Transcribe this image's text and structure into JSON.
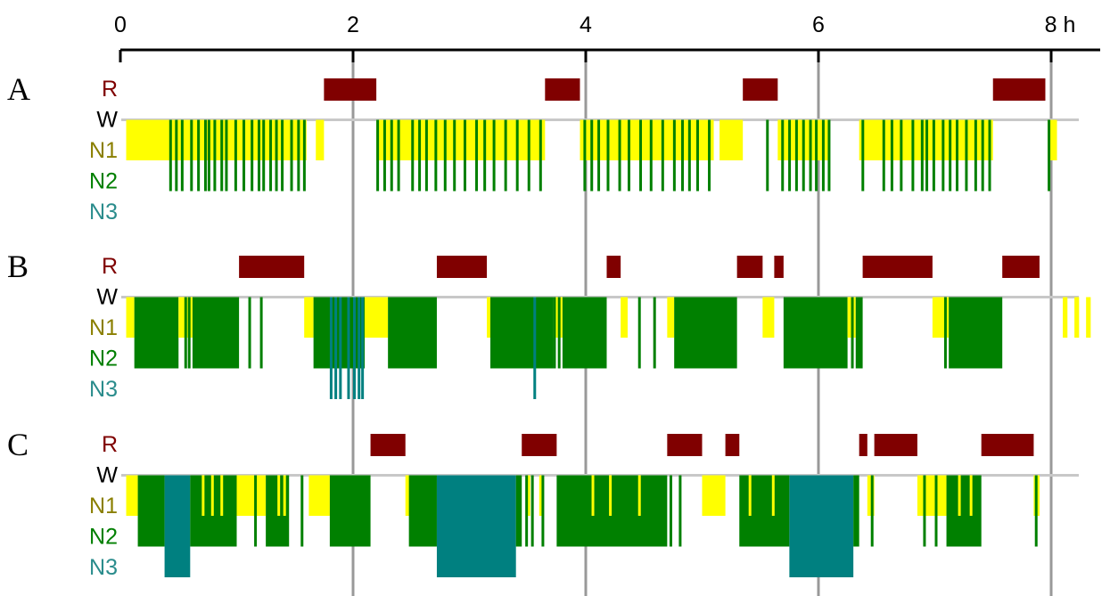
{
  "colors": {
    "R": "#7f0000",
    "W": "#000000",
    "N1": "#8a7f00",
    "N2": "#007f00",
    "N3": "#2a8c8c",
    "fill_N1": "#ffff00",
    "fill_N2": "#008000",
    "fill_N3": "#008080",
    "fill_R": "#800000",
    "gridline": "#999999",
    "baseline": "#c8c8c8"
  },
  "chart_data": {
    "type": "hypnogram",
    "x_axis": {
      "range": [
        0,
        8.0
      ],
      "unit_label": "h",
      "ticks": [
        0,
        2,
        4,
        6,
        8
      ],
      "tick_labels": [
        "0",
        "2",
        "4",
        "6",
        "8 h"
      ]
    },
    "stage_labels": [
      "R",
      "W",
      "N1",
      "N2",
      "N3"
    ],
    "panels": [
      {
        "label": "A",
        "segments": [
          {
            "stage": "N1",
            "start": 0.05,
            "end": 1.6
          },
          {
            "stage": "N1",
            "start": 1.68,
            "end": 1.75
          },
          {
            "stage": "R",
            "start": 1.75,
            "end": 2.2
          },
          {
            "stage": "N1",
            "start": 2.2,
            "end": 3.65
          },
          {
            "stage": "R",
            "start": 3.65,
            "end": 3.95
          },
          {
            "stage": "N1",
            "start": 3.95,
            "end": 5.1
          },
          {
            "stage": "N1",
            "start": 5.15,
            "end": 5.35
          },
          {
            "stage": "R",
            "start": 5.35,
            "end": 5.65
          },
          {
            "stage": "N1",
            "start": 5.65,
            "end": 6.1
          },
          {
            "stage": "N1",
            "start": 6.35,
            "end": 7.5
          },
          {
            "stage": "R",
            "start": 7.5,
            "end": 7.95
          },
          {
            "stage": "N1",
            "start": 7.97,
            "end": 8.05
          }
        ],
        "spikes": [
          {
            "stage": "N2",
            "times": [
              0.42,
              0.47,
              0.52,
              0.6,
              0.66,
              0.72,
              0.75,
              0.8,
              0.86,
              0.9,
              0.98,
              1.05,
              1.12,
              1.18,
              1.22,
              1.28,
              1.33,
              1.38,
              1.46,
              1.52,
              1.57,
              2.2,
              2.26,
              2.32,
              2.38,
              2.5,
              2.56,
              2.62,
              2.7,
              2.78,
              2.86,
              2.95,
              3.05,
              3.12,
              3.2,
              3.3,
              3.4,
              3.5,
              3.6,
              3.98,
              4.04,
              4.1,
              4.18,
              4.28,
              4.36,
              4.46,
              4.55,
              4.65,
              4.75,
              4.82,
              4.88,
              4.95,
              5.05,
              5.55,
              5.68,
              5.74,
              5.8,
              5.86,
              5.92,
              5.97,
              6.03,
              6.08,
              6.37,
              6.55,
              6.62,
              6.7,
              6.8,
              6.88,
              6.92,
              6.98,
              7.06,
              7.12,
              7.18,
              7.26,
              7.34,
              7.4,
              7.46,
              7.97
            ]
          }
        ]
      },
      {
        "label": "B",
        "segments": [
          {
            "stage": "N1",
            "start": 0.05,
            "end": 0.12
          },
          {
            "stage": "N2",
            "start": 0.12,
            "end": 0.5
          },
          {
            "stage": "N1",
            "start": 0.5,
            "end": 0.62
          },
          {
            "stage": "N2",
            "start": 0.62,
            "end": 1.02
          },
          {
            "stage": "R",
            "start": 1.02,
            "end": 1.58
          },
          {
            "stage": "N1",
            "start": 1.58,
            "end": 1.66
          },
          {
            "stage": "N2",
            "start": 1.66,
            "end": 2.1
          },
          {
            "stage": "N1",
            "start": 2.1,
            "end": 2.3
          },
          {
            "stage": "N2",
            "start": 2.3,
            "end": 2.72
          },
          {
            "stage": "R",
            "start": 2.72,
            "end": 3.15
          },
          {
            "stage": "N1",
            "start": 3.15,
            "end": 3.18
          },
          {
            "stage": "N2",
            "start": 3.18,
            "end": 3.72
          },
          {
            "stage": "N1",
            "start": 3.72,
            "end": 3.8
          },
          {
            "stage": "N2",
            "start": 3.8,
            "end": 4.18
          },
          {
            "stage": "R",
            "start": 4.18,
            "end": 4.3
          },
          {
            "stage": "N1",
            "start": 4.3,
            "end": 4.36
          },
          {
            "stage": "N1",
            "start": 4.7,
            "end": 4.76
          },
          {
            "stage": "N2",
            "start": 4.76,
            "end": 5.3
          },
          {
            "stage": "R",
            "start": 5.3,
            "end": 5.52
          },
          {
            "stage": "N1",
            "start": 5.52,
            "end": 5.62
          },
          {
            "stage": "R",
            "start": 5.62,
            "end": 5.7
          },
          {
            "stage": "N2",
            "start": 5.7,
            "end": 6.25
          },
          {
            "stage": "N1",
            "start": 6.25,
            "end": 6.32
          },
          {
            "stage": "N2",
            "start": 6.32,
            "end": 6.38
          },
          {
            "stage": "R",
            "start": 6.38,
            "end": 6.98
          },
          {
            "stage": "N1",
            "start": 6.98,
            "end": 7.12
          },
          {
            "stage": "N2",
            "start": 7.12,
            "end": 7.58
          },
          {
            "stage": "R",
            "start": 7.58,
            "end": 7.9
          },
          {
            "stage": "N1",
            "start": 8.1,
            "end": 8.14
          },
          {
            "stage": "N1",
            "start": 8.2,
            "end": 8.24
          },
          {
            "stage": "N1",
            "start": 8.3,
            "end": 8.34
          }
        ],
        "spikes": [
          {
            "stage": "N3",
            "times": [
              1.8,
              1.84,
              1.88,
              1.95,
              2.0,
              2.04,
              2.07,
              3.55
            ]
          },
          {
            "stage": "N2",
            "times": [
              0.55,
              0.58,
              0.9,
              0.95,
              1.1,
              1.2,
              3.72,
              3.76,
              4.45,
              4.58,
              6.28,
              7.08
            ]
          }
        ]
      },
      {
        "label": "C",
        "segments": [
          {
            "stage": "N1",
            "start": 0.05,
            "end": 0.15
          },
          {
            "stage": "N2",
            "start": 0.15,
            "end": 0.38
          },
          {
            "stage": "N3",
            "start": 0.38,
            "end": 0.6
          },
          {
            "stage": "N2",
            "start": 0.6,
            "end": 1.0
          },
          {
            "stage": "N1",
            "start": 1.0,
            "end": 1.25
          },
          {
            "stage": "N2",
            "start": 1.25,
            "end": 1.45
          },
          {
            "stage": "N1",
            "start": 1.62,
            "end": 1.8
          },
          {
            "stage": "N2",
            "start": 1.8,
            "end": 2.15
          },
          {
            "stage": "R",
            "start": 2.15,
            "end": 2.45
          },
          {
            "stage": "N1",
            "start": 2.45,
            "end": 2.5
          },
          {
            "stage": "N2",
            "start": 2.5,
            "end": 2.72
          },
          {
            "stage": "N3",
            "start": 2.72,
            "end": 3.4
          },
          {
            "stage": "N2",
            "start": 3.4,
            "end": 3.45
          },
          {
            "stage": "R",
            "start": 3.45,
            "end": 3.75
          },
          {
            "stage": "N2",
            "start": 3.75,
            "end": 4.7
          },
          {
            "stage": "R",
            "start": 4.7,
            "end": 5.0
          },
          {
            "stage": "N1",
            "start": 5.0,
            "end": 5.2
          },
          {
            "stage": "R",
            "start": 5.2,
            "end": 5.32
          },
          {
            "stage": "N2",
            "start": 5.32,
            "end": 5.75
          },
          {
            "stage": "N3",
            "start": 5.75,
            "end": 6.3
          },
          {
            "stage": "N2",
            "start": 6.3,
            "end": 6.35
          },
          {
            "stage": "R",
            "start": 6.35,
            "end": 6.42
          },
          {
            "stage": "N1",
            "start": 6.42,
            "end": 6.48
          },
          {
            "stage": "R",
            "start": 6.48,
            "end": 6.85
          },
          {
            "stage": "N1",
            "start": 6.85,
            "end": 7.1
          },
          {
            "stage": "N2",
            "start": 7.1,
            "end": 7.4
          },
          {
            "stage": "R",
            "start": 7.4,
            "end": 7.85
          },
          {
            "stage": "N1",
            "start": 7.85,
            "end": 7.9
          }
        ],
        "spikes": [
          {
            "stage": "N1",
            "times": [
              0.7,
              0.78,
              0.86,
              1.08,
              1.35,
              1.4,
              3.5,
              3.6,
              4.05,
              4.2,
              4.45,
              5.4,
              5.6,
              7.2,
              7.3
            ]
          },
          {
            "stage": "N2",
            "times": [
              1.15,
              1.55,
              2.48,
              2.6,
              3.48,
              3.53,
              3.62,
              4.72,
              4.8,
              6.45,
              6.9,
              7.0,
              7.15,
              7.86
            ]
          }
        ]
      }
    ]
  }
}
